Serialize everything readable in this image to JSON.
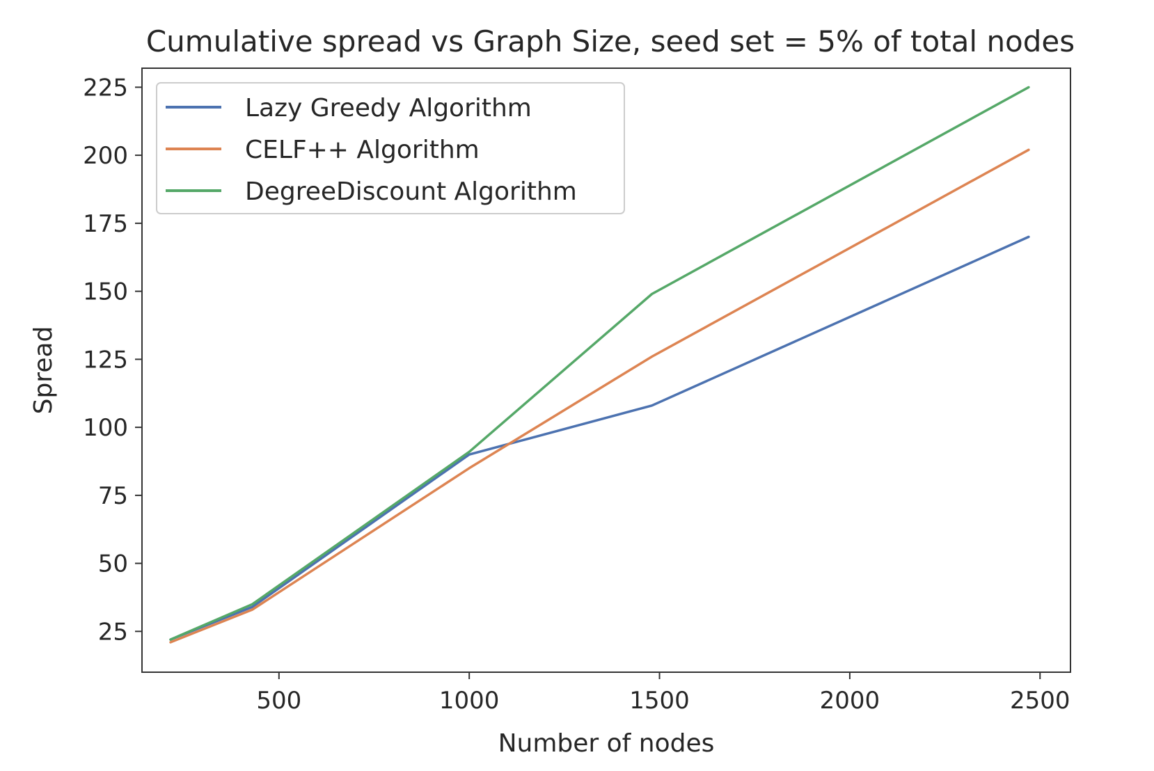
{
  "chart_data": {
    "type": "line",
    "title": "Cumulative spread vs Graph Size, seed set = 5% of total nodes",
    "xlabel": "Number of nodes",
    "ylabel": "Spread",
    "xlim": [
      140,
      2580
    ],
    "ylim": [
      10,
      232
    ],
    "xticks": [
      500,
      1000,
      1500,
      2000,
      2500
    ],
    "yticks": [
      25,
      50,
      75,
      100,
      125,
      150,
      175,
      200,
      225
    ],
    "grid": false,
    "legend_position": "upper-left",
    "x": [
      215,
      430,
      1000,
      1480,
      2470
    ],
    "series": [
      {
        "name": "Lazy Greedy Algorithm",
        "color": "#4c72b0",
        "values": [
          22,
          34,
          90,
          108,
          170
        ]
      },
      {
        "name": "CELF++ Algorithm",
        "color": "#dd8452",
        "values": [
          21,
          33,
          85,
          126,
          202
        ]
      },
      {
        "name": "DegreeDiscount Algorithm",
        "color": "#55a868",
        "values": [
          22,
          35,
          91,
          149,
          225
        ]
      }
    ]
  }
}
